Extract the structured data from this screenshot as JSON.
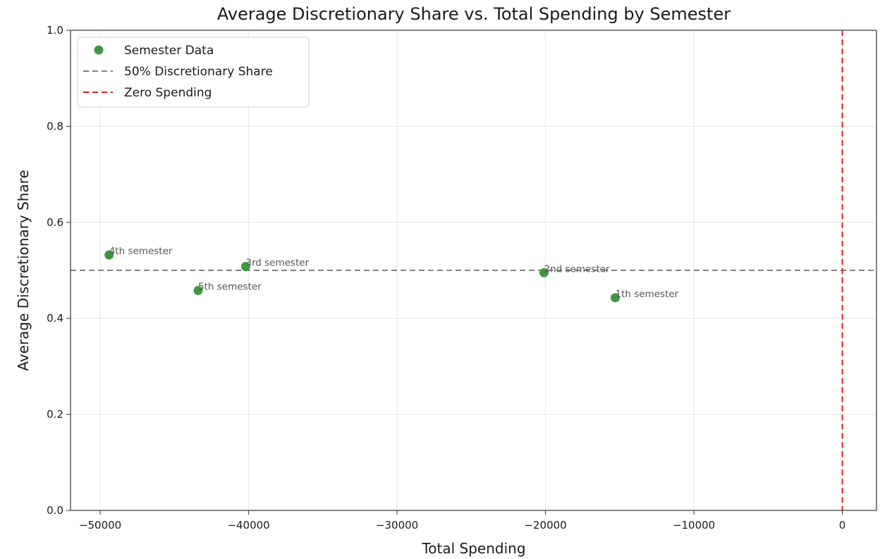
{
  "chart_data": {
    "type": "scatter",
    "title": "Average Discretionary Share vs. Total Spending by Semester",
    "xlabel": "Total Spending",
    "ylabel": "Average Discretionary Share",
    "xlim": [
      -52000,
      2300
    ],
    "ylim": [
      0.0,
      1.0
    ],
    "xticks": [
      -50000,
      -40000,
      -30000,
      -20000,
      -10000,
      0
    ],
    "xtick_labels": [
      "−50000",
      "−40000",
      "−30000",
      "−20000",
      "−10000",
      "0"
    ],
    "yticks": [
      0.0,
      0.2,
      0.4,
      0.6,
      0.8,
      1.0
    ],
    "ytick_labels": [
      "0.0",
      "0.2",
      "0.4",
      "0.6",
      "0.8",
      "1.0"
    ],
    "grid": true,
    "legend_position": "top-left",
    "points": [
      {
        "label": "1th semester",
        "x": -15300,
        "y": 0.443
      },
      {
        "label": "2nd semester",
        "x": -20100,
        "y": 0.495
      },
      {
        "label": "3rd semester",
        "x": -40200,
        "y": 0.508
      },
      {
        "label": "4th semester",
        "x": -49400,
        "y": 0.532
      },
      {
        "label": "5th semester",
        "x": -43400,
        "y": 0.458
      }
    ],
    "reference_lines": [
      {
        "name": "50% Discretionary Share",
        "orientation": "horizontal",
        "value": 0.5,
        "color": "#808080",
        "style": "dashed"
      },
      {
        "name": "Zero Spending",
        "orientation": "vertical",
        "value": 0,
        "color": "#e31a1c",
        "style": "dashed"
      }
    ],
    "legend": [
      {
        "name": "Semester Data",
        "kind": "marker",
        "color": "#2e8b2e"
      },
      {
        "name": "50% Discretionary Share",
        "kind": "dashed-line",
        "color": "#808080"
      },
      {
        "name": "Zero Spending",
        "kind": "dashed-line",
        "color": "#e31a1c"
      }
    ],
    "colors": {
      "points": "#2e8b2e",
      "grid": "#e6e6e6"
    }
  }
}
